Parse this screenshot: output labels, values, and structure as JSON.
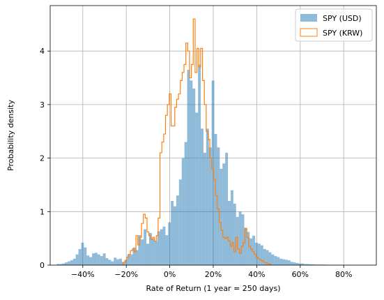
{
  "chart_data": {
    "type": "histogram",
    "xlabel": "Rate of Return (1 year = 250 days)",
    "ylabel": "Probability density",
    "xlim": [
      -0.55,
      0.95
    ],
    "ylim": [
      0,
      4.85
    ],
    "x_ticks": [
      {
        "value": -0.4,
        "label": "−40%"
      },
      {
        "value": -0.2,
        "label": "−20%"
      },
      {
        "value": 0.0,
        "label": "0%"
      },
      {
        "value": 0.2,
        "label": "20%"
      },
      {
        "value": 0.4,
        "label": "40%"
      },
      {
        "value": 0.6,
        "label": "60%"
      },
      {
        "value": 0.8,
        "label": "80%"
      }
    ],
    "y_ticks": [
      {
        "value": 0,
        "label": "0"
      },
      {
        "value": 1,
        "label": "1"
      },
      {
        "value": 2,
        "label": "2"
      },
      {
        "value": 3,
        "label": "3"
      },
      {
        "value": 4,
        "label": "4"
      }
    ],
    "grid": true,
    "legend_position": "top-right",
    "series": [
      {
        "name": "SPY (USD)",
        "style": "filled",
        "color": "#1f77b4",
        "opacity": 0.5,
        "bin_start": -0.52,
        "bin_width": 0.0125,
        "values": [
          0.02,
          0.02,
          0.03,
          0.05,
          0.07,
          0.09,
          0.12,
          0.2,
          0.3,
          0.42,
          0.33,
          0.18,
          0.15,
          0.22,
          0.23,
          0.2,
          0.17,
          0.22,
          0.13,
          0.1,
          0.07,
          0.14,
          0.11,
          0.12,
          0.06,
          0.1,
          0.2,
          0.2,
          0.33,
          0.28,
          0.56,
          0.48,
          0.67,
          0.4,
          0.6,
          0.5,
          0.45,
          0.63,
          0.67,
          0.72,
          0.56,
          0.8,
          1.2,
          1.1,
          1.3,
          1.6,
          2.0,
          2.3,
          3.65,
          3.45,
          3.3,
          2.85,
          3.75,
          2.55,
          2.1,
          2.55,
          2.2,
          3.45,
          2.45,
          2.2,
          1.8,
          1.9,
          2.1,
          1.2,
          1.4,
          1.15,
          0.9,
          1.0,
          0.95,
          0.7,
          0.62,
          0.5,
          0.55,
          0.42,
          0.4,
          0.37,
          0.3,
          0.28,
          0.24,
          0.2,
          0.17,
          0.15,
          0.12,
          0.11,
          0.1,
          0.09,
          0.06,
          0.05,
          0.04,
          0.03,
          0.03,
          0.02,
          0.02,
          0.015,
          0.015,
          0.01,
          0.01,
          0.01,
          0.01,
          0.008,
          0.006,
          0.006,
          0.005,
          0.005,
          0.004,
          0.004,
          0.003,
          0.003,
          0.002
        ]
      },
      {
        "name": "SPY (KRW)",
        "style": "step",
        "color": "#ff7f0e",
        "bin_start": -0.215,
        "bin_width": 0.0085,
        "values": [
          0.05,
          0.08,
          0.15,
          0.2,
          0.27,
          0.3,
          0.25,
          0.55,
          0.38,
          0.52,
          0.78,
          0.95,
          0.88,
          0.62,
          0.55,
          0.48,
          0.52,
          0.45,
          0.55,
          0.88,
          2.1,
          2.3,
          2.45,
          2.8,
          3.0,
          3.2,
          2.6,
          2.6,
          2.95,
          3.1,
          3.2,
          3.45,
          3.6,
          3.75,
          4.15,
          4.0,
          3.5,
          3.75,
          4.6,
          3.6,
          4.05,
          3.7,
          4.05,
          3.45,
          3.0,
          2.5,
          2.35,
          2.0,
          1.8,
          1.6,
          1.3,
          1.05,
          0.8,
          0.65,
          0.52,
          0.5,
          0.52,
          0.45,
          0.35,
          0.42,
          0.25,
          0.52,
          0.3,
          0.22,
          0.35,
          0.42,
          0.68,
          0.52,
          0.35,
          0.3,
          0.25,
          0.2,
          0.15,
          0.12,
          0.1,
          0.08,
          0.05,
          0.04,
          0.03,
          0.02
        ]
      }
    ]
  }
}
